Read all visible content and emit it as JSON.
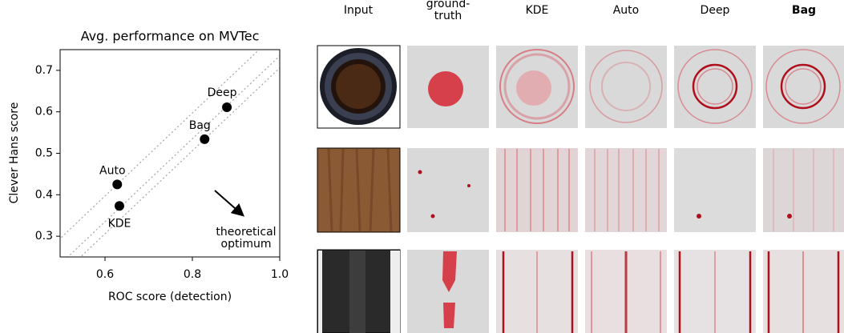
{
  "chart_data": {
    "type": "scatter",
    "title": "Avg. performance on MVTec",
    "x_label": "ROC score (detection)",
    "y_label": "Clever Hans score",
    "categories": [
      "KDE",
      "Auto",
      "Bag",
      "Deep"
    ],
    "x": [
      0.633,
      0.628,
      0.828,
      0.879
    ],
    "values": [
      0.373,
      0.425,
      0.534,
      0.611
    ],
    "color": "#000000",
    "xlim": [
      0.5,
      1.0
    ],
    "xticks": [
      0.6,
      0.8,
      {
        "value": 1.0,
        "label": "1.0"
      }
    ],
    "ylim": [
      0.25,
      0.75
    ],
    "yticks": [
      0.3,
      0.4,
      0.5,
      0.6,
      0.7
    ],
    "diagonal_offsets": [
      -0.203,
      -0.265,
      -0.294
    ],
    "annotation": [
      "theoretical",
      "optimum"
    ]
  },
  "image_grid": {
    "columns": [
      "Input",
      "ground-\ntruth",
      "KDE",
      "Auto",
      "Deep",
      "Bag"
    ]
  }
}
